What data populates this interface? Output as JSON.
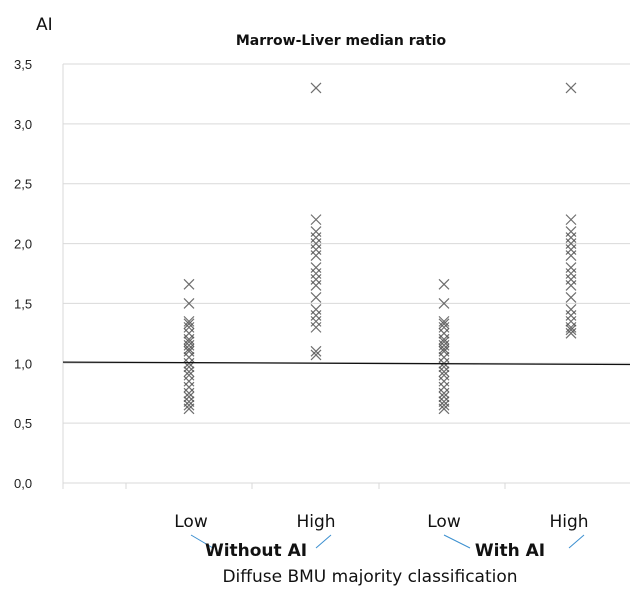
{
  "chart_data": {
    "type": "scatter",
    "title": "Marrow-Liver median ratio",
    "ylabel": "AI",
    "xlabel": "Diffuse BMU majority classification",
    "ylim": [
      0,
      3.5
    ],
    "yticks": [
      "0,0",
      "0,5",
      "1,0",
      "1,5",
      "2,0",
      "2,5",
      "3,0",
      "3,5"
    ],
    "grid": true,
    "groups": [
      {
        "label": "Without AI",
        "categories": [
          "Low",
          "High"
        ]
      },
      {
        "label": "With AI",
        "categories": [
          "Low",
          "High"
        ]
      }
    ],
    "reference_line": {
      "y_start": 1.01,
      "y_end": 0.99
    },
    "series": [
      {
        "group": "Without AI",
        "category": "Low",
        "values": [
          1.66,
          1.5,
          1.35,
          1.33,
          1.3,
          1.25,
          1.2,
          1.18,
          1.15,
          1.12,
          1.1,
          1.05,
          1.0,
          0.97,
          0.93,
          0.9,
          0.85,
          0.8,
          0.75,
          0.72,
          0.68,
          0.65,
          0.62
        ]
      },
      {
        "group": "Without AI",
        "category": "High",
        "values": [
          3.3,
          2.2,
          2.1,
          2.05,
          2.0,
          1.95,
          1.9,
          1.8,
          1.75,
          1.7,
          1.65,
          1.55,
          1.45,
          1.4,
          1.35,
          1.3,
          1.1,
          1.07
        ]
      },
      {
        "group": "With AI",
        "category": "Low",
        "values": [
          1.66,
          1.5,
          1.35,
          1.33,
          1.3,
          1.25,
          1.2,
          1.18,
          1.15,
          1.12,
          1.1,
          1.05,
          1.0,
          0.97,
          0.93,
          0.9,
          0.85,
          0.8,
          0.75,
          0.72,
          0.68,
          0.65,
          0.62
        ]
      },
      {
        "group": "With AI",
        "category": "High",
        "values": [
          3.3,
          2.2,
          2.1,
          2.05,
          2.0,
          1.95,
          1.9,
          1.8,
          1.75,
          1.7,
          1.65,
          1.55,
          1.45,
          1.4,
          1.35,
          1.3,
          1.28,
          1.25
        ]
      }
    ]
  }
}
